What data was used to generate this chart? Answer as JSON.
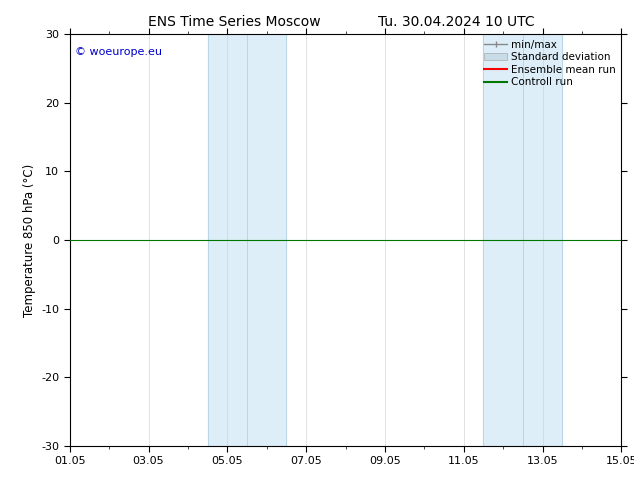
{
  "title": "ENS Time Series Moscow",
  "title_right": "Tu. 30.04.2024 10 UTC",
  "ylabel": "Temperature 850 hPa (°C)",
  "ylim": [
    -30,
    30
  ],
  "yticks": [
    -30,
    -20,
    -10,
    0,
    10,
    20,
    30
  ],
  "xtick_labels": [
    "01.05",
    "03.05",
    "05.05",
    "07.05",
    "09.05",
    "11.05",
    "13.05",
    "15.05"
  ],
  "xtick_positions": [
    0,
    2,
    4,
    6,
    8,
    10,
    12,
    14
  ],
  "copyright_text": "© woeurope.eu",
  "legend_items": [
    "min/max",
    "Standard deviation",
    "Ensemble mean run",
    "Controll run"
  ],
  "shaded_bands": [
    {
      "x_start": 3.5,
      "x_end": 4.5
    },
    {
      "x_start": 4.5,
      "x_end": 5.5
    },
    {
      "x_start": 10.5,
      "x_end": 11.5
    },
    {
      "x_start": 11.5,
      "x_end": 12.5
    }
  ],
  "shaded_color": "#ddeef8",
  "background_color": "#ffffff",
  "zero_line_color": "#007700",
  "title_fontsize": 10,
  "axis_fontsize": 8.5,
  "tick_fontsize": 8,
  "copyright_color": "#0000cc",
  "legend_minmax_color": "#888888",
  "legend_std_color": "#c8dce8",
  "legend_ensemble_color": "#ff0000",
  "legend_control_color": "#007700"
}
